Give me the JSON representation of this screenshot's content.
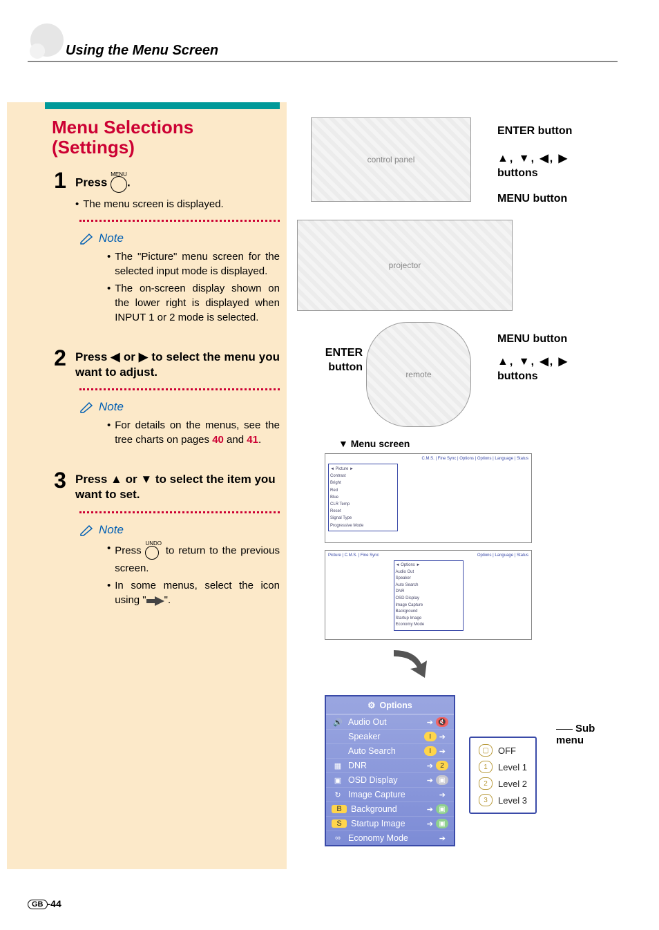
{
  "header": {
    "title": "Using the Menu Screen"
  },
  "main_title": "Menu Selections (Settings)",
  "steps": [
    {
      "num": "1",
      "head_prefix": "Press ",
      "head_suffix": ".",
      "icon_label": "MENU",
      "detail": "The menu screen is displayed.",
      "notes": [
        "The \"Picture\" menu screen for the selected input mode is displayed.",
        "The on-screen display shown on the lower right is displayed when INPUT 1 or 2 mode is selected."
      ]
    },
    {
      "num": "2",
      "head": "Press ◀ or ▶ to select the menu you want to adjust.",
      "notes_plain": true,
      "notes": [
        "For details on the menus, see the tree charts on pages 40 and 41."
      ],
      "page_refs": [
        "40",
        "41"
      ]
    },
    {
      "num": "3",
      "head": "Press ▲ or ▼ to select the item you want to set.",
      "notes": [
        "Press (UNDO) to return to the previous screen.",
        "In some menus, select the icon using \"→\"."
      ]
    }
  ],
  "note_label": "Note",
  "callouts": {
    "enter": "ENTER button",
    "dir": "▲, ▼, ◀, ▶",
    "dir_label": "buttons",
    "menu": "MENU button",
    "sub": "Sub menu"
  },
  "menu_screen_label": "▼ Menu screen",
  "options_panel": {
    "title": "Options",
    "title_icon": "⚙",
    "rows": [
      {
        "icon": "🔊",
        "label": "Audio Out",
        "glyph": "🔇",
        "gcolor": "#e66"
      },
      {
        "icon": "",
        "label": "Speaker",
        "toggle": true,
        "gcolor": "#8ad"
      },
      {
        "icon": "",
        "label": "Auto Search",
        "toggle": true,
        "gcolor": "#8ad"
      },
      {
        "icon": "▦",
        "label": "DNR",
        "glyph": "2",
        "gcolor": "#ffd54a",
        "gtext": "#333"
      },
      {
        "icon": "▣",
        "label": "OSD Display",
        "glyph": "▣",
        "gcolor": "#c7c7cf"
      },
      {
        "icon": "↻",
        "label": "Image Capture",
        "glyph": "",
        "gcolor": ""
      },
      {
        "icon": "B",
        "iconColor": "#ffd54a",
        "label": "Background",
        "glyph": "▣",
        "gcolor": "#8fd08f"
      },
      {
        "icon": "S",
        "iconColor": "#ffd54a",
        "label": "Startup Image",
        "glyph": "▣",
        "gcolor": "#8fd08f"
      },
      {
        "icon": "∞",
        "label": "Economy Mode",
        "glyph": "",
        "gcolor": ""
      }
    ]
  },
  "sub_menu": {
    "rows": [
      {
        "icon": "▢",
        "label": "OFF"
      },
      {
        "icon": "1",
        "label": "Level 1"
      },
      {
        "icon": "2",
        "label": "Level 2"
      },
      {
        "icon": "3",
        "label": "Level 3"
      }
    ]
  },
  "page_number": "-44",
  "page_badge": "GB",
  "colors": {
    "teal": "#009999",
    "red": "#cc0033",
    "blue": "#005fb3",
    "bg": "#fce9c9",
    "panel": "#7d8cd6",
    "panel_border": "#3a4aa8"
  }
}
